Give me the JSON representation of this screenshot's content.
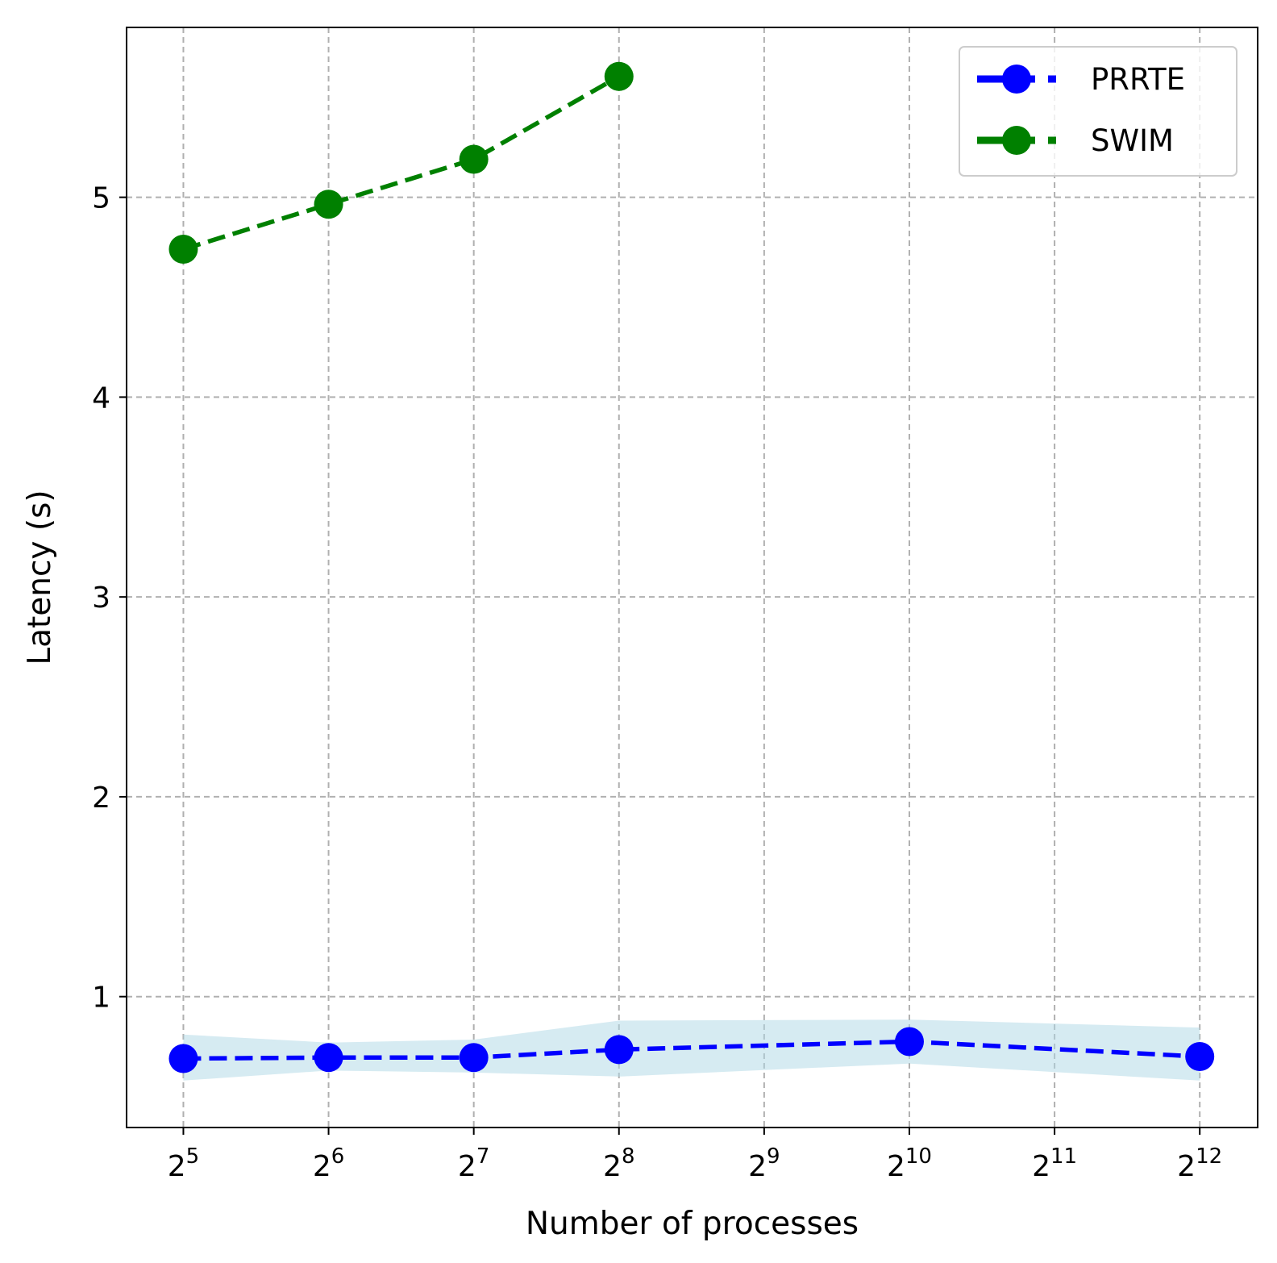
{
  "chart_data": {
    "type": "line",
    "xlabel": "Number of processes",
    "ylabel": "Latency (s)",
    "x_scale": "log2",
    "x_ticks": [
      {
        "value": 32,
        "base": "2",
        "exp": "5"
      },
      {
        "value": 64,
        "base": "2",
        "exp": "6"
      },
      {
        "value": 128,
        "base": "2",
        "exp": "7"
      },
      {
        "value": 256,
        "base": "2",
        "exp": "8"
      },
      {
        "value": 512,
        "base": "2",
        "exp": "9"
      },
      {
        "value": 1024,
        "base": "2",
        "exp": "10"
      },
      {
        "value": 2048,
        "base": "2",
        "exp": "11"
      },
      {
        "value": 4096,
        "base": "2",
        "exp": "12"
      }
    ],
    "y_ticks": [
      "1",
      "2",
      "3",
      "4",
      "5"
    ],
    "xlim": [
      24.4,
      5400
    ],
    "ylim": [
      0.345,
      5.85
    ],
    "grid": true,
    "legend_position": "top-right",
    "series": [
      {
        "name": "PRRTE",
        "color": "#0000ff",
        "x": [
          32,
          64,
          128,
          256,
          1024,
          4096
        ],
        "y": [
          0.69,
          0.695,
          0.695,
          0.735,
          0.775,
          0.7
        ],
        "band_lower": [
          0.58,
          0.63,
          0.62,
          0.6,
          0.665,
          0.58
        ],
        "band_upper": [
          0.81,
          0.77,
          0.785,
          0.88,
          0.885,
          0.845
        ],
        "band_color": "#add8e6"
      },
      {
        "name": "SWIM",
        "color": "#008000",
        "x": [
          32,
          64,
          128,
          256
        ],
        "y": [
          4.74,
          4.965,
          5.19,
          5.605
        ]
      }
    ]
  }
}
